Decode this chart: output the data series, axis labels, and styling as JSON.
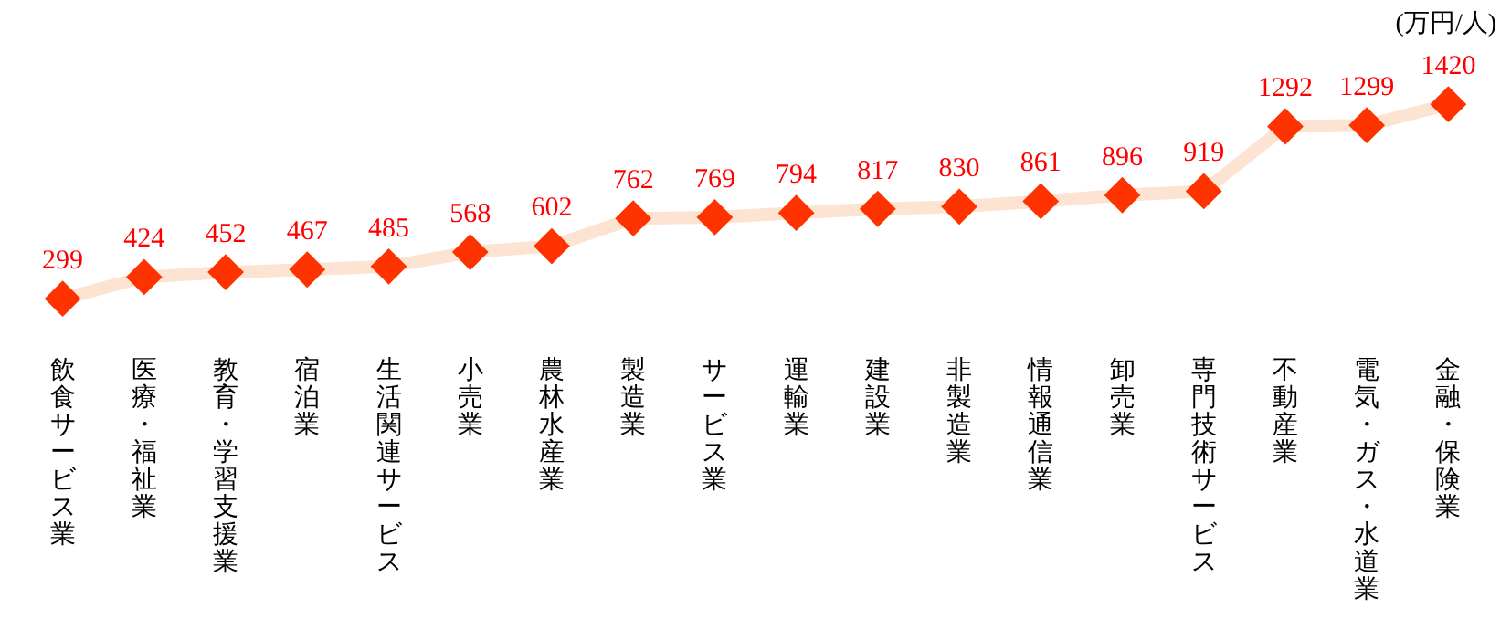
{
  "chart_data": {
    "type": "line",
    "ylabel": "(万円/人)",
    "categories": [
      "飲食サービス業",
      "医療・福祉業",
      "教育・学習支援業",
      "宿泊業",
      "生活関連サービス",
      "小売業",
      "農林水産業",
      "製造業",
      "サービス業",
      "運輸業",
      "建設業",
      "非製造業",
      "情報通信業",
      "卸売業",
      "専門技術サービス",
      "不動産業",
      "電気・ガス・水道業",
      "金融・保険業"
    ],
    "series": [
      {
        "color": "#fde3d2",
        "colors": [
          "#ff3300",
          "#ff3300",
          "#ff3300",
          "#ff3300",
          "#ff3300",
          "#ff3300",
          "#ff3300",
          "#ff3300",
          "#ff3300",
          "#ff3300",
          "#ff3300",
          "#ff3300",
          "#ff3300",
          "#ff3300",
          "#ff3300",
          "#ff3300",
          "#ff3300",
          "#ff3300"
        ],
        "values": [
          299,
          424,
          452,
          467,
          485,
          568,
          602,
          762,
          769,
          794,
          817,
          830,
          861,
          896,
          919,
          1292,
          1299,
          1420
        ]
      }
    ],
    "data_labels": true,
    "marker": "diamond",
    "tick_labels": "x"
  }
}
